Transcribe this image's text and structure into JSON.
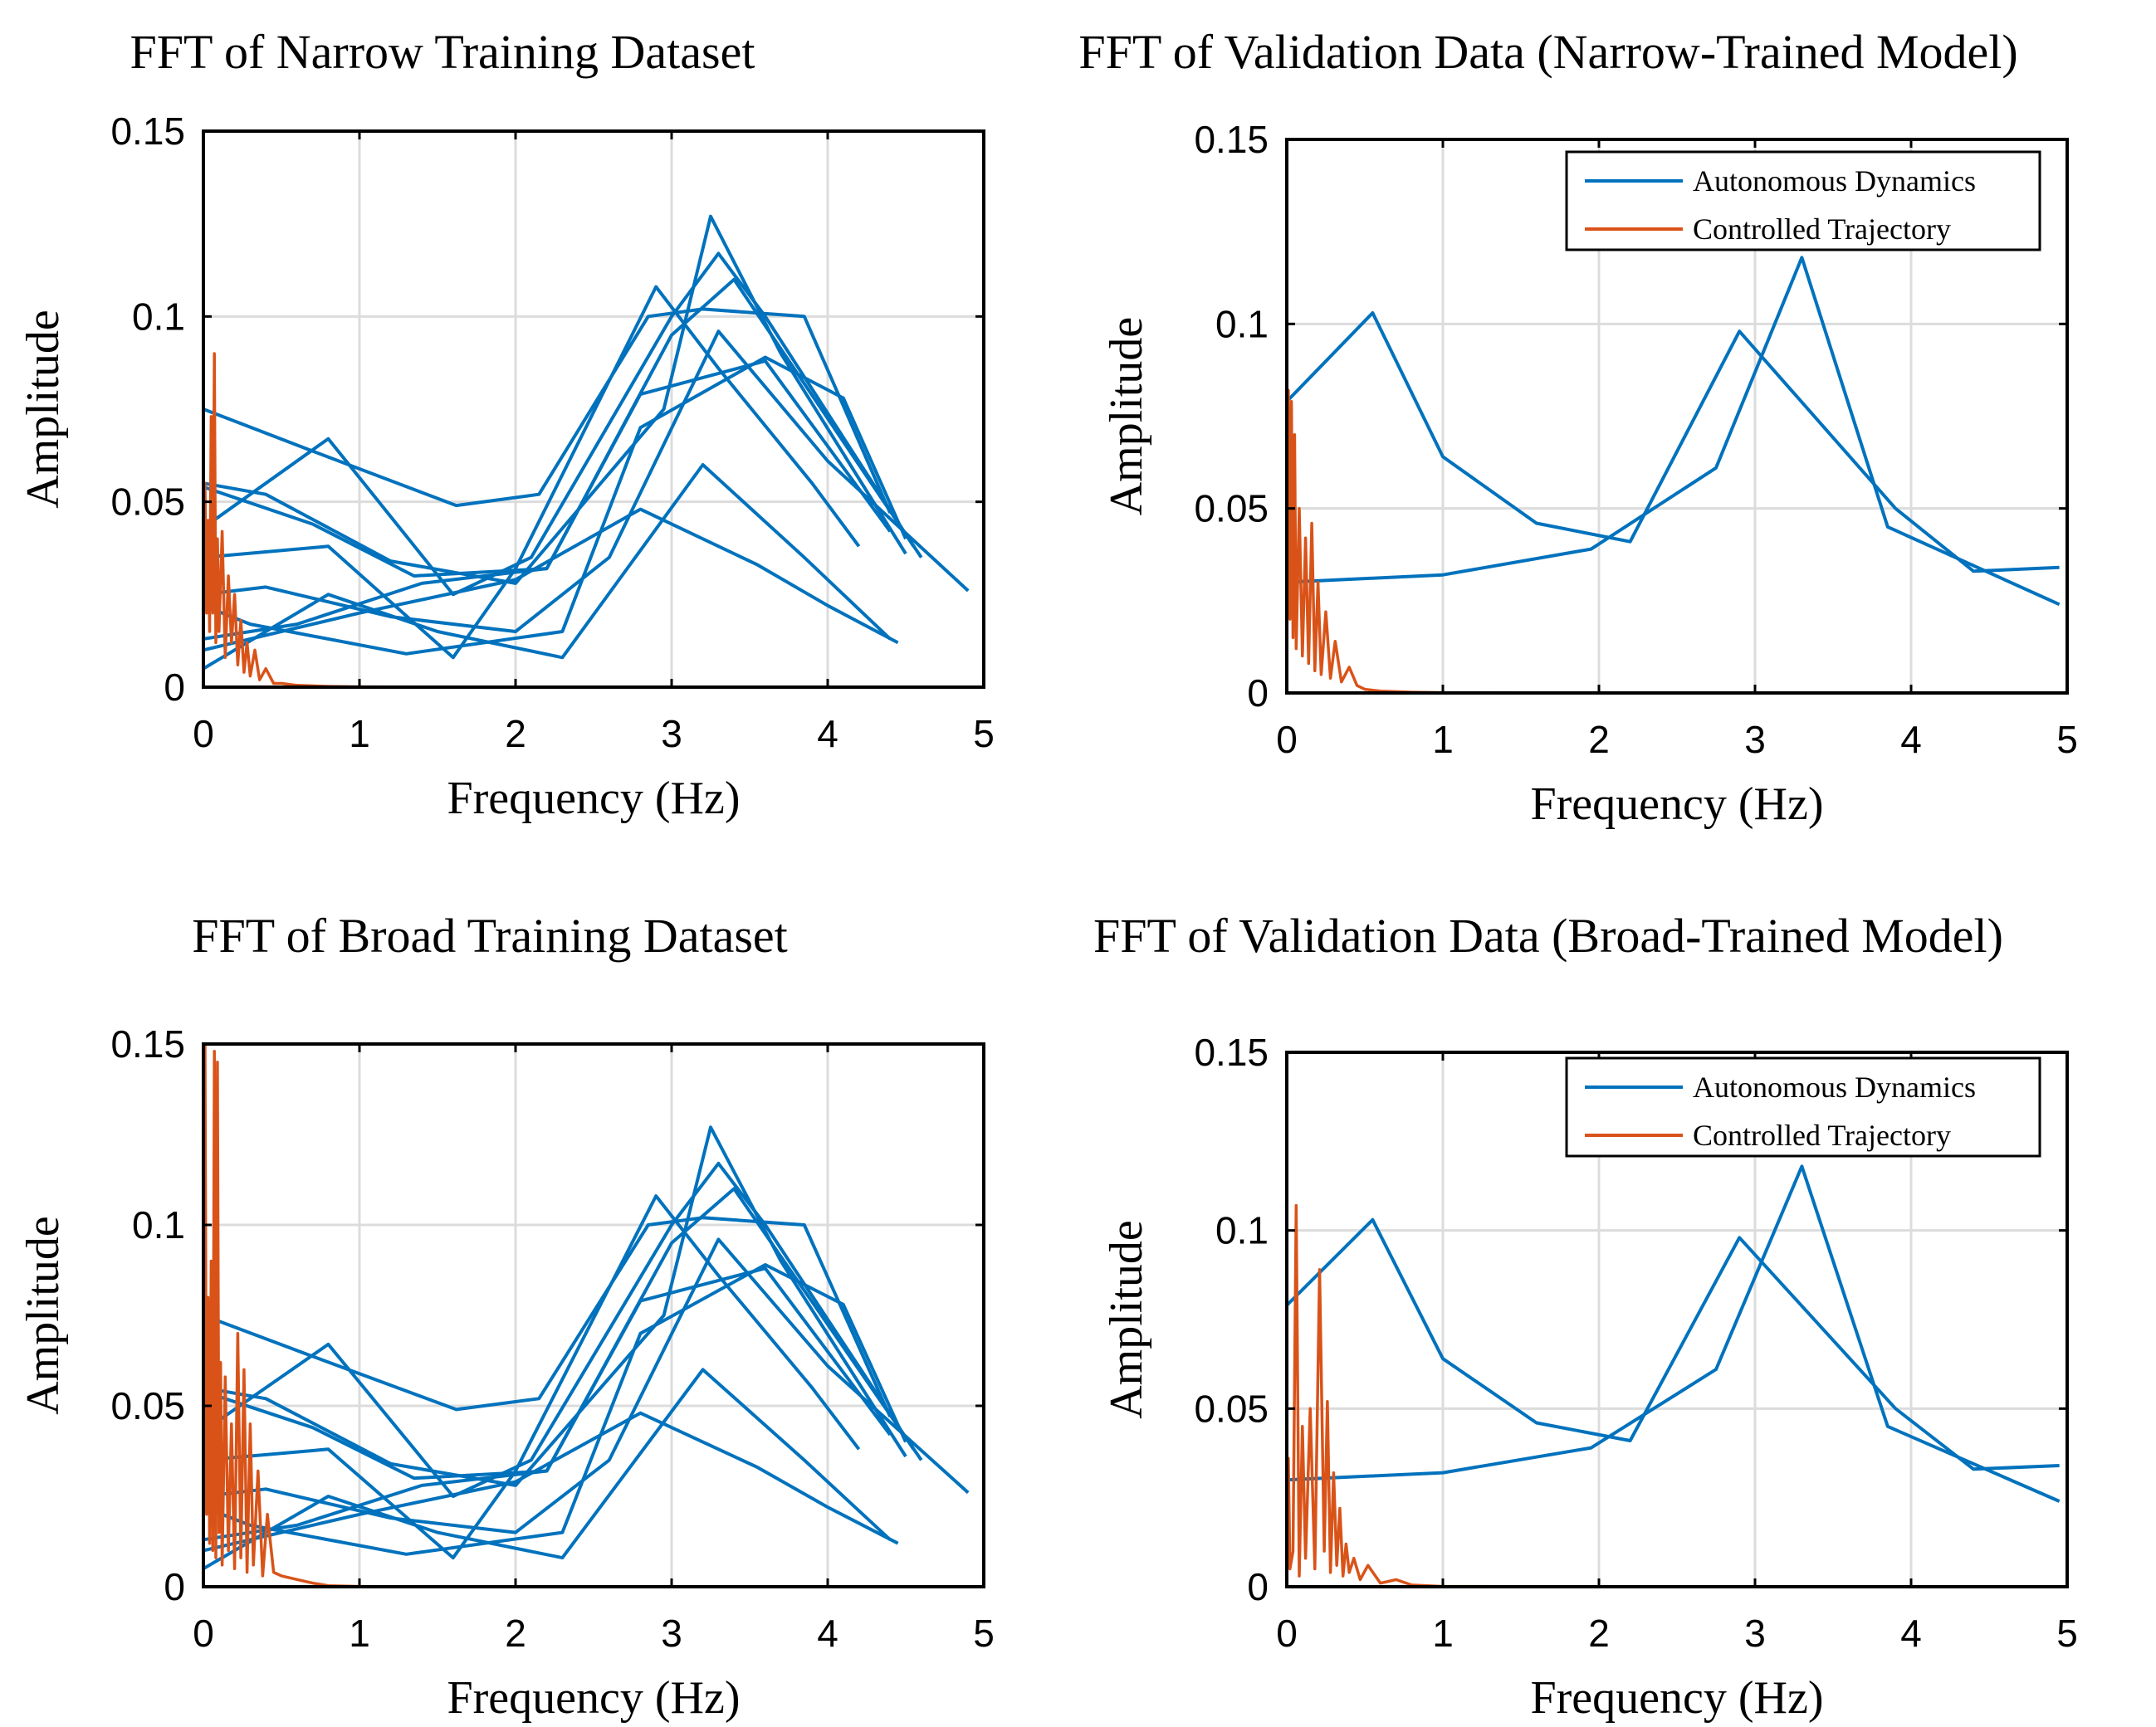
{
  "colors": {
    "autonomous": "#0072BD",
    "controlled": "#D95319",
    "grid": "#dcdcdc",
    "axis": "#000000"
  },
  "chart_data": [
    {
      "type": "line",
      "title": "FFT of Narrow Training Dataset",
      "xlabel": "Frequency (Hz)",
      "ylabel": "Amplitude",
      "xlim": [
        0,
        5
      ],
      "ylim": [
        0,
        0.15
      ],
      "xticks": [
        "0",
        "1",
        "2",
        "3",
        "4",
        "5"
      ],
      "yticks": [
        "0",
        "0.05",
        "0.1",
        "0.15"
      ],
      "grid": true,
      "legend": null,
      "series": [
        {
          "kind": "autonomous",
          "x": [
            0.0,
            0.68,
            1.62,
            2.15,
            2.85,
            3.2,
            3.85,
            4.4
          ],
          "y": [
            0.075,
            0.064,
            0.049,
            0.052,
            0.1,
            0.102,
            0.1,
            0.047
          ]
        },
        {
          "kind": "autonomous",
          "x": [
            0.0,
            0.8,
            1.6,
            2.1,
            3.0,
            3.3,
            3.6,
            4.55
          ],
          "y": [
            0.043,
            0.067,
            0.025,
            0.035,
            0.1,
            0.117,
            0.1,
            0.038
          ]
        },
        {
          "kind": "autonomous",
          "x": [
            0.0,
            0.4,
            1.2,
            2.0,
            2.95,
            3.25,
            3.7,
            4.5
          ],
          "y": [
            0.055,
            0.052,
            0.034,
            0.028,
            0.075,
            0.127,
            0.09,
            0.036
          ]
        },
        {
          "kind": "autonomous",
          "x": [
            0.0,
            0.8,
            1.6,
            2.0,
            2.9,
            3.3,
            3.9,
            4.2
          ],
          "y": [
            0.035,
            0.038,
            0.008,
            0.032,
            0.108,
            0.086,
            0.055,
            0.038
          ]
        },
        {
          "kind": "autonomous",
          "x": [
            0.0,
            0.7,
            1.35,
            2.2,
            3.0,
            3.4,
            4.2,
            4.6
          ],
          "y": [
            0.054,
            0.044,
            0.03,
            0.032,
            0.095,
            0.11,
            0.06,
            0.035
          ]
        },
        {
          "kind": "autonomous",
          "x": [
            0.0,
            0.4,
            1.2,
            2.0,
            2.6,
            3.3,
            4.0,
            4.9
          ],
          "y": [
            0.025,
            0.027,
            0.019,
            0.015,
            0.035,
            0.096,
            0.061,
            0.026
          ]
        },
        {
          "kind": "autonomous",
          "x": [
            0.0,
            0.3,
            1.3,
            2.3,
            2.8,
            3.6,
            4.1,
            4.5
          ],
          "y": [
            0.022,
            0.017,
            0.009,
            0.015,
            0.07,
            0.089,
            0.078,
            0.04
          ]
        },
        {
          "kind": "autonomous",
          "x": [
            0.0,
            0.8,
            1.5,
            2.3,
            3.2,
            3.85,
            4.4
          ],
          "y": [
            0.005,
            0.025,
            0.015,
            0.008,
            0.06,
            0.035,
            0.013
          ]
        },
        {
          "kind": "autonomous",
          "x": [
            0.0,
            1.0,
            2.0,
            2.8,
            3.55,
            4.0,
            4.45
          ],
          "y": [
            0.01,
            0.02,
            0.029,
            0.048,
            0.033,
            0.022,
            0.012
          ]
        },
        {
          "kind": "autonomous",
          "x": [
            0.0,
            0.6,
            1.4,
            2.2,
            2.8,
            3.6,
            4.4
          ],
          "y": [
            0.013,
            0.017,
            0.028,
            0.032,
            0.079,
            0.088,
            0.042
          ]
        },
        {
          "kind": "controlled",
          "x": [
            0.0,
            0.01,
            0.02,
            0.03,
            0.04,
            0.05,
            0.06,
            0.07,
            0.08,
            0.09,
            0.1,
            0.12,
            0.14,
            0.16,
            0.18,
            0.2,
            0.22,
            0.24,
            0.26,
            0.28,
            0.3,
            0.33,
            0.36,
            0.4,
            0.45,
            0.5,
            0.6,
            0.8,
            1.0,
            2.0,
            3.0,
            4.0,
            5.0
          ],
          "y": [
            0.04,
            0.055,
            0.02,
            0.045,
            0.015,
            0.073,
            0.02,
            0.09,
            0.012,
            0.04,
            0.015,
            0.042,
            0.008,
            0.03,
            0.012,
            0.025,
            0.006,
            0.018,
            0.004,
            0.012,
            0.003,
            0.01,
            0.002,
            0.005,
            0.001,
            0.001,
            0.0005,
            0.0002,
            0.0001,
            0.0,
            0.0,
            0.0,
            0.0
          ]
        }
      ]
    },
    {
      "type": "line",
      "title": "FFT of Validation Data (Narrow-Trained Model)",
      "xlabel": "Frequency (Hz)",
      "ylabel": "Amplitude",
      "xlim": [
        0,
        5
      ],
      "ylim": [
        0,
        0.15
      ],
      "xticks": [
        "0",
        "1",
        "2",
        "3",
        "4",
        "5"
      ],
      "yticks": [
        "0",
        "0.05",
        "0.1",
        "0.15"
      ],
      "grid": true,
      "legend": "top-right",
      "legend_entries": [
        "Autonomous Dynamics",
        "Controlled Trajectory"
      ],
      "series": [
        {
          "kind": "autonomous",
          "name": "Autonomous Dynamics",
          "x": [
            0.0,
            0.55,
            1.0,
            1.6,
            2.2,
            2.9,
            3.9,
            4.4,
            4.95
          ],
          "y": [
            0.079,
            0.103,
            0.064,
            0.046,
            0.041,
            0.098,
            0.05,
            0.033,
            0.034
          ]
        },
        {
          "kind": "autonomous",
          "x": [
            0.0,
            1.0,
            1.95,
            2.75,
            3.3,
            3.85,
            4.95
          ],
          "y": [
            0.03,
            0.032,
            0.039,
            0.061,
            0.118,
            0.045,
            0.024
          ]
        },
        {
          "kind": "controlled",
          "name": "Controlled Trajectory",
          "x": [
            0.0,
            0.01,
            0.02,
            0.03,
            0.04,
            0.05,
            0.06,
            0.08,
            0.1,
            0.12,
            0.14,
            0.16,
            0.18,
            0.2,
            0.22,
            0.25,
            0.28,
            0.31,
            0.35,
            0.4,
            0.45,
            0.5,
            0.6,
            0.8,
            1.0,
            2.0,
            3.0,
            4.0,
            5.0
          ],
          "y": [
            0.03,
            0.082,
            0.02,
            0.079,
            0.015,
            0.07,
            0.012,
            0.05,
            0.01,
            0.042,
            0.008,
            0.046,
            0.006,
            0.03,
            0.005,
            0.022,
            0.004,
            0.014,
            0.003,
            0.007,
            0.002,
            0.001,
            0.0005,
            0.0002,
            0.0001,
            0.0,
            0.0,
            0.0,
            0.0
          ]
        }
      ]
    },
    {
      "type": "line",
      "title": "FFT of Broad Training Dataset",
      "xlabel": "Frequency (Hz)",
      "ylabel": "Amplitude",
      "xlim": [
        0,
        5
      ],
      "ylim": [
        0,
        0.15
      ],
      "xticks": [
        "0",
        "1",
        "2",
        "3",
        "4",
        "5"
      ],
      "yticks": [
        "0",
        "0.05",
        "0.1",
        "0.15"
      ],
      "grid": true,
      "legend": null,
      "series": [
        {
          "kind": "autonomous",
          "x": [
            0.0,
            0.68,
            1.62,
            2.15,
            2.85,
            3.2,
            3.85,
            4.4
          ],
          "y": [
            0.075,
            0.064,
            0.049,
            0.052,
            0.1,
            0.102,
            0.1,
            0.047
          ]
        },
        {
          "kind": "autonomous",
          "x": [
            0.0,
            0.8,
            1.6,
            2.1,
            3.0,
            3.3,
            3.6,
            4.55
          ],
          "y": [
            0.043,
            0.067,
            0.025,
            0.035,
            0.1,
            0.117,
            0.1,
            0.038
          ]
        },
        {
          "kind": "autonomous",
          "x": [
            0.0,
            0.4,
            1.2,
            2.0,
            2.95,
            3.25,
            3.7,
            4.5
          ],
          "y": [
            0.055,
            0.052,
            0.034,
            0.028,
            0.075,
            0.127,
            0.09,
            0.036
          ]
        },
        {
          "kind": "autonomous",
          "x": [
            0.0,
            0.8,
            1.6,
            2.0,
            2.9,
            3.3,
            3.9,
            4.2
          ],
          "y": [
            0.035,
            0.038,
            0.008,
            0.032,
            0.108,
            0.086,
            0.055,
            0.038
          ]
        },
        {
          "kind": "autonomous",
          "x": [
            0.0,
            0.7,
            1.35,
            2.2,
            3.0,
            3.4,
            4.2,
            4.6
          ],
          "y": [
            0.054,
            0.044,
            0.03,
            0.032,
            0.095,
            0.11,
            0.06,
            0.035
          ]
        },
        {
          "kind": "autonomous",
          "x": [
            0.0,
            0.4,
            1.2,
            2.0,
            2.6,
            3.3,
            4.0,
            4.9
          ],
          "y": [
            0.025,
            0.027,
            0.019,
            0.015,
            0.035,
            0.096,
            0.061,
            0.026
          ]
        },
        {
          "kind": "autonomous",
          "x": [
            0.0,
            0.3,
            1.3,
            2.3,
            2.8,
            3.6,
            4.1,
            4.5
          ],
          "y": [
            0.022,
            0.017,
            0.009,
            0.015,
            0.07,
            0.089,
            0.078,
            0.04
          ]
        },
        {
          "kind": "autonomous",
          "x": [
            0.0,
            0.8,
            1.5,
            2.3,
            3.2,
            3.85,
            4.4
          ],
          "y": [
            0.005,
            0.025,
            0.015,
            0.008,
            0.06,
            0.035,
            0.013
          ]
        },
        {
          "kind": "autonomous",
          "x": [
            0.0,
            1.0,
            2.0,
            2.8,
            3.55,
            4.0,
            4.45
          ],
          "y": [
            0.01,
            0.02,
            0.029,
            0.048,
            0.033,
            0.022,
            0.012
          ]
        },
        {
          "kind": "autonomous",
          "x": [
            0.0,
            0.6,
            1.4,
            2.2,
            2.8,
            3.6,
            4.4
          ],
          "y": [
            0.013,
            0.017,
            0.028,
            0.032,
            0.079,
            0.088,
            0.042
          ]
        },
        {
          "kind": "controlled",
          "x": [
            0.0,
            0.01,
            0.02,
            0.03,
            0.04,
            0.05,
            0.06,
            0.07,
            0.08,
            0.09,
            0.1,
            0.11,
            0.12,
            0.14,
            0.16,
            0.18,
            0.2,
            0.22,
            0.24,
            0.26,
            0.28,
            0.3,
            0.32,
            0.35,
            0.38,
            0.41,
            0.45,
            0.5,
            0.6,
            0.7,
            0.8,
            1.0,
            2.0,
            3.0,
            4.0,
            5.0
          ],
          "y": [
            0.05,
            0.15,
            0.02,
            0.08,
            0.012,
            0.09,
            0.01,
            0.148,
            0.008,
            0.145,
            0.015,
            0.062,
            0.006,
            0.058,
            0.01,
            0.045,
            0.005,
            0.07,
            0.008,
            0.06,
            0.004,
            0.045,
            0.006,
            0.032,
            0.003,
            0.02,
            0.004,
            0.003,
            0.002,
            0.001,
            0.0003,
            0.0001,
            0.0,
            0.0,
            0.0,
            0.0
          ]
        }
      ]
    },
    {
      "type": "line",
      "title": "FFT of Validation Data (Broad-Trained Model)",
      "xlabel": "Frequency (Hz)",
      "ylabel": "Amplitude",
      "xlim": [
        0,
        5
      ],
      "ylim": [
        0,
        0.15
      ],
      "xticks": [
        "0",
        "1",
        "2",
        "3",
        "4",
        "5"
      ],
      "yticks": [
        "0",
        "0.05",
        "0.1",
        "0.15"
      ],
      "grid": true,
      "legend": "top-right",
      "legend_entries": [
        "Autonomous Dynamics",
        "Controlled Trajectory"
      ],
      "series": [
        {
          "kind": "autonomous",
          "name": "Autonomous Dynamics",
          "x": [
            0.0,
            0.55,
            1.0,
            1.6,
            2.2,
            2.9,
            3.9,
            4.4,
            4.95
          ],
          "y": [
            0.079,
            0.103,
            0.064,
            0.046,
            0.041,
            0.098,
            0.05,
            0.033,
            0.034
          ]
        },
        {
          "kind": "autonomous",
          "x": [
            0.0,
            1.0,
            1.95,
            2.75,
            3.3,
            3.85,
            4.95
          ],
          "y": [
            0.03,
            0.032,
            0.039,
            0.061,
            0.118,
            0.045,
            0.024
          ]
        },
        {
          "kind": "controlled",
          "name": "Controlled Trajectory",
          "x": [
            0.0,
            0.01,
            0.02,
            0.04,
            0.06,
            0.08,
            0.1,
            0.12,
            0.15,
            0.18,
            0.21,
            0.24,
            0.26,
            0.28,
            0.3,
            0.32,
            0.34,
            0.36,
            0.38,
            0.4,
            0.43,
            0.47,
            0.52,
            0.6,
            0.7,
            0.8,
            1.0,
            2.0,
            3.0,
            4.0,
            5.0
          ],
          "y": [
            0.03,
            0.036,
            0.005,
            0.01,
            0.107,
            0.003,
            0.045,
            0.008,
            0.05,
            0.005,
            0.089,
            0.01,
            0.052,
            0.004,
            0.032,
            0.006,
            0.022,
            0.003,
            0.012,
            0.004,
            0.008,
            0.002,
            0.006,
            0.001,
            0.002,
            0.0005,
            0.0001,
            0.0,
            0.0,
            0.0,
            0.0
          ]
        }
      ]
    }
  ]
}
